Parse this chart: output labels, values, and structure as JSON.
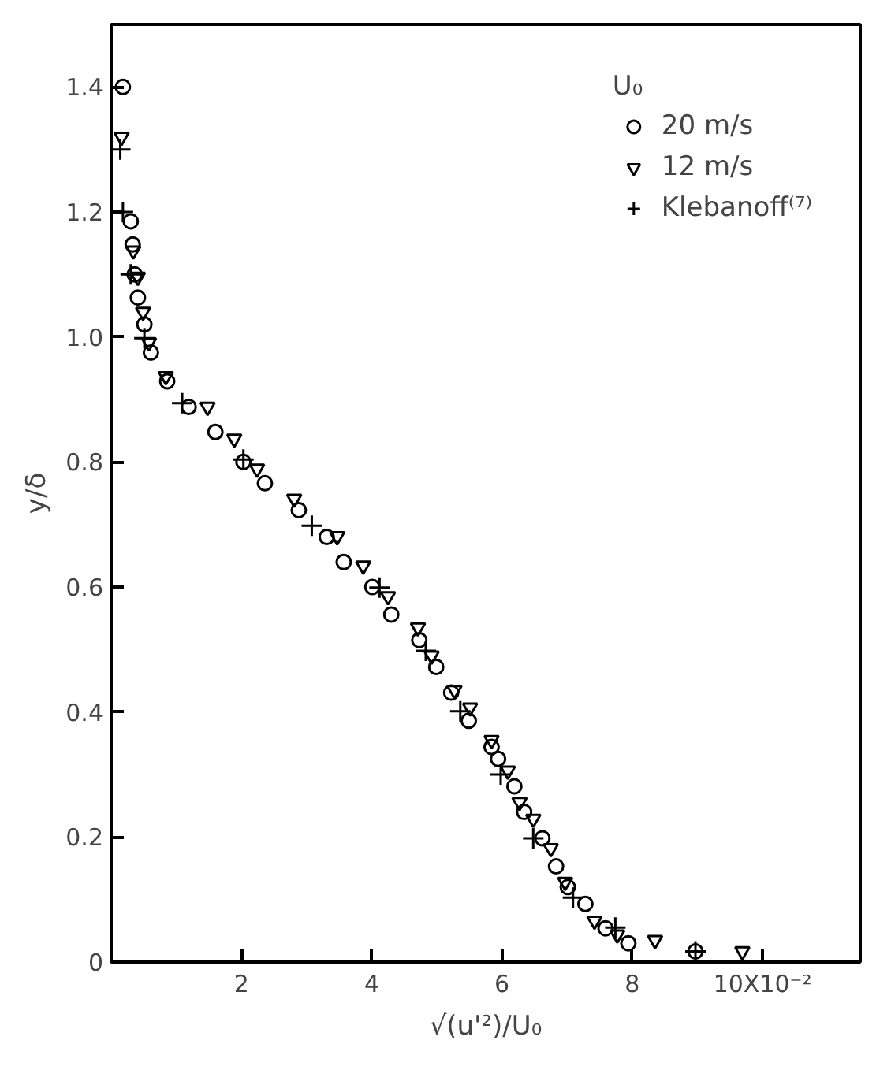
{
  "chart_data": {
    "type": "scatter",
    "xlabel": "√(u'²)/U₀",
    "ylabel": "y/δ",
    "legend_title": "U₀",
    "xlim": [
      0,
      11.5
    ],
    "ylim": [
      0,
      1.5
    ],
    "xticks": [
      2,
      4,
      6,
      8,
      {
        "value": 10,
        "label": "10X10⁻²"
      }
    ],
    "yticks": [
      0,
      0.2,
      0.4,
      0.6,
      0.8,
      {
        "value": 1.0,
        "label": "1.0"
      },
      1.2,
      1.4
    ],
    "grid": false,
    "legend": "top right",
    "series": [
      {
        "name": "20 m/s",
        "color": "#000000",
        "marker": "circle",
        "x": [
          0.18,
          0.3,
          0.33,
          0.36,
          0.41,
          0.51,
          0.61,
          0.86,
          1.19,
          1.6,
          2.03,
          2.36,
          2.88,
          3.31,
          3.57,
          4.01,
          4.3,
          4.73,
          4.99,
          5.22,
          5.49,
          5.84,
          5.94,
          6.19,
          6.34,
          6.62,
          6.83,
          7.01,
          7.28,
          7.59,
          7.94,
          8.97
        ],
        "values": [
          1.4,
          1.185,
          1.148,
          1.1,
          1.063,
          1.02,
          0.975,
          0.929,
          0.888,
          0.848,
          0.8,
          0.766,
          0.723,
          0.68,
          0.64,
          0.6,
          0.556,
          0.515,
          0.472,
          0.431,
          0.386,
          0.344,
          0.325,
          0.281,
          0.24,
          0.198,
          0.153,
          0.12,
          0.093,
          0.054,
          0.03,
          0.017
        ]
      },
      {
        "name": "12 m/s",
        "color": "#000000",
        "marker": "triangle",
        "x": [
          0.16,
          0.34,
          0.41,
          0.49,
          0.58,
          0.84,
          1.48,
          1.89,
          2.24,
          2.81,
          3.47,
          3.87,
          4.25,
          4.71,
          4.92,
          5.27,
          5.51,
          5.84,
          6.09,
          6.27,
          6.48,
          6.75,
          6.97,
          7.42,
          7.77,
          8.35,
          9.69
        ],
        "values": [
          1.32,
          1.138,
          1.096,
          1.04,
          0.991,
          0.937,
          0.888,
          0.837,
          0.789,
          0.741,
          0.681,
          0.634,
          0.585,
          0.535,
          0.49,
          0.435,
          0.407,
          0.355,
          0.306,
          0.256,
          0.229,
          0.182,
          0.128,
          0.066,
          0.044,
          0.035,
          0.017
        ]
      },
      {
        "name": "Klebanoff⁽⁷⁾",
        "color": "#000000",
        "marker": "cross",
        "x": [
          0.14,
          0.18,
          0.3,
          0.51,
          1.09,
          2.03,
          3.08,
          4.12,
          4.83,
          5.36,
          5.98,
          6.48,
          7.09,
          7.74,
          8.97
        ],
        "values": [
          1.3,
          1.2,
          1.1,
          0.998,
          0.894,
          0.804,
          0.698,
          0.599,
          0.498,
          0.401,
          0.3,
          0.198,
          0.103,
          0.055,
          0.017
        ]
      }
    ]
  }
}
